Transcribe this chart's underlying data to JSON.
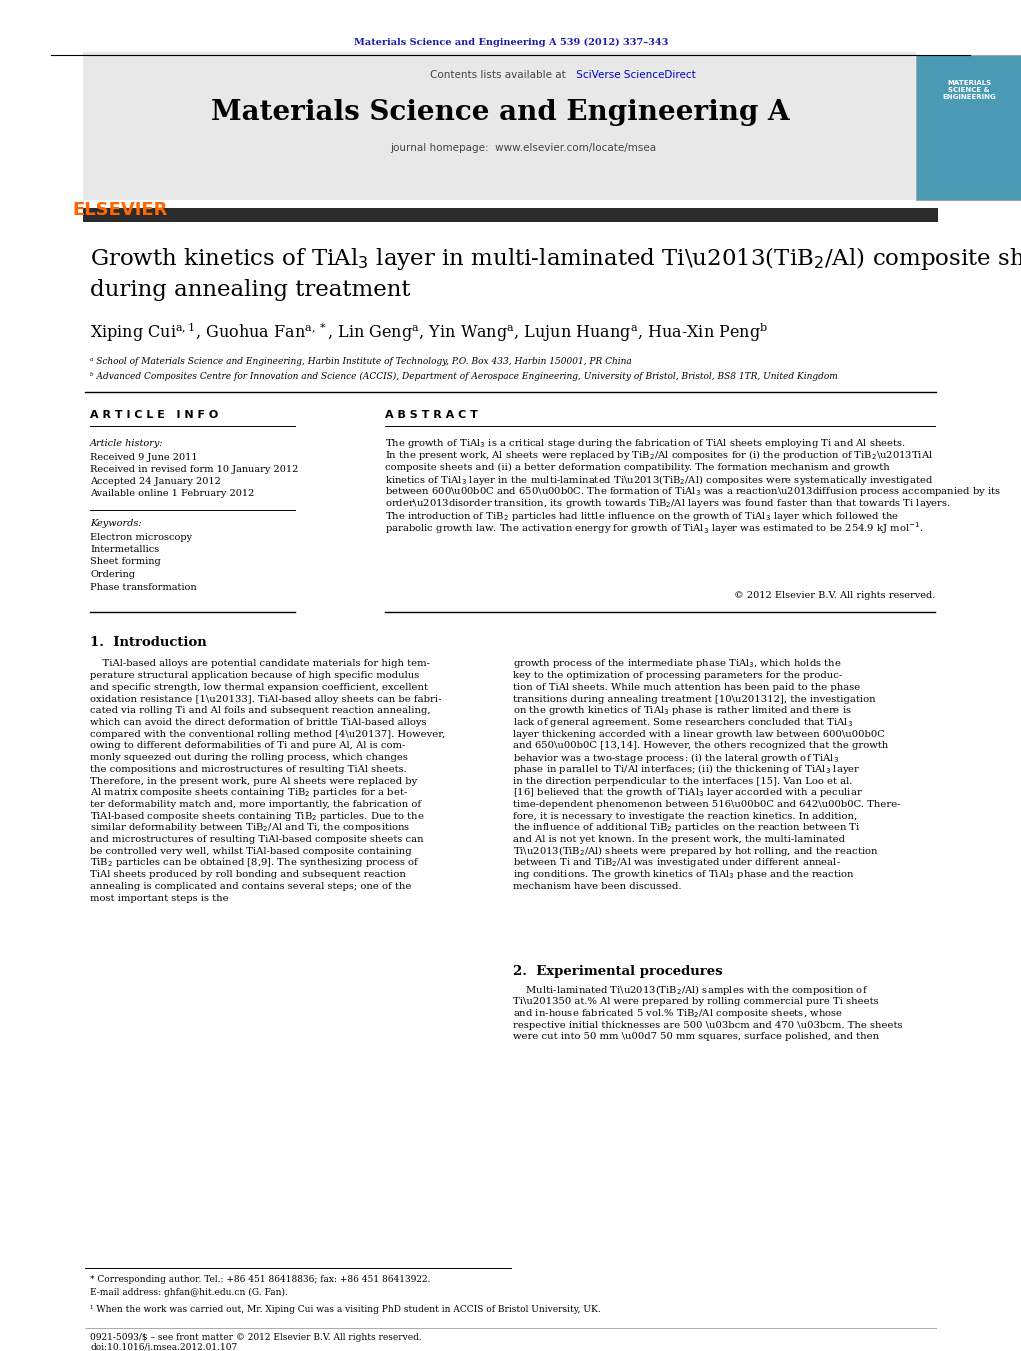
{
  "page_width": 10.21,
  "page_height": 13.51,
  "background_color": "#ffffff",
  "top_citation": "Materials Science and Engineering A 539 (2012) 337–343",
  "top_citation_color": "#1a1aaa",
  "header_bg": "#e8e8e8",
  "header_contents": "Contents lists available at",
  "header_sciverse": "SciVerse ScienceDirect",
  "header_journal": "Materials Science and Engineering A",
  "header_homepage_prefix": "journal homepage: ",
  "header_homepage_url": "www.elsevier.com/locate/msea",
  "header_url_color": "#0000cc",
  "elsevier_color": "#FF6600",
  "dark_bar_color": "#2b2b2b",
  "affil_a": "ᵃ School of Materials Science and Engineering, Harbin Institute of Technology, P.O. Box 433, Harbin 150001, PR China",
  "affil_b": "ᵇ Advanced Composites Centre for Innovation and Science (ACCIS), Department of Aerospace Engineering, University of Bristol, Bristol, BS8 1TR, United Kingdom",
  "article_info_header": "A R T I C L E   I N F O",
  "abstract_header": "A B S T R A C T",
  "article_history_label": "Article history:",
  "received1": "Received 9 June 2011",
  "received2": "Received in revised form 10 January 2012",
  "accepted": "Accepted 24 January 2012",
  "available": "Available online 1 February 2012",
  "keywords_label": "Keywords:",
  "keywords": [
    "Electron microscopy",
    "Intermetallics",
    "Sheet forming",
    "Ordering",
    "Phase transformation"
  ],
  "copyright": "© 2012 Elsevier B.V. All rights reserved.",
  "section1_title": "1.  Introduction",
  "section2_title": "2.  Experimental procedures",
  "footnote_star": "* Corresponding author. Tel.: +86 451 86418836; fax: +86 451 86413922.",
  "footnote_email": "E-mail address: ghfan@hit.edu.cn (G. Fan).",
  "footnote_1": "¹ When the work was carried out, Mr. Xiping Cui was a visiting PhD student in ACCIS of Bristol University, UK.",
  "bottom_text1": "0921-5093/$ – see front matter © 2012 Elsevier B.V. All rights reserved.",
  "bottom_text2": "doi:10.1016/j.msea.2012.01.107"
}
